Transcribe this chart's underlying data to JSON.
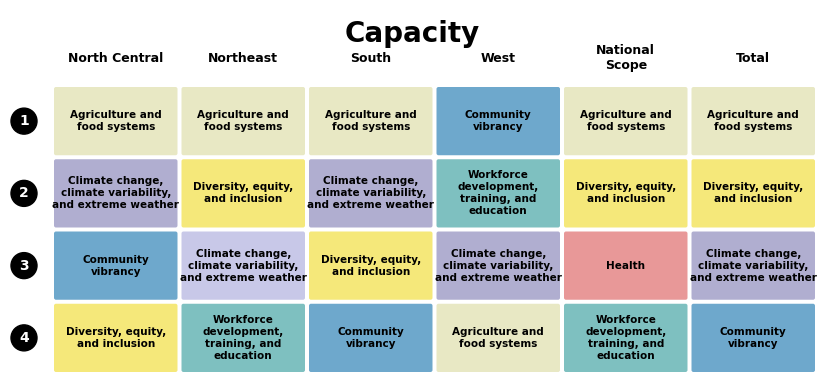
{
  "title": "Capacity",
  "columns": [
    "North Central",
    "Northeast",
    "South",
    "West",
    "National\nScope",
    "Total"
  ],
  "rows": [
    {
      "label": "1",
      "cells": [
        {
          "text": "Agriculture and\nfood systems",
          "color": "#e8e8c4"
        },
        {
          "text": "Agriculture and\nfood systems",
          "color": "#e8e8c4"
        },
        {
          "text": "Agriculture and\nfood systems",
          "color": "#e8e8c4"
        },
        {
          "text": "Community\nvibrancy",
          "color": "#6ea8cc"
        },
        {
          "text": "Agriculture and\nfood systems",
          "color": "#e8e8c4"
        },
        {
          "text": "Agriculture and\nfood systems",
          "color": "#e8e8c4"
        }
      ]
    },
    {
      "label": "2",
      "cells": [
        {
          "text": "Climate change,\nclimate variability,\nand extreme weather",
          "color": "#b0aed0"
        },
        {
          "text": "Diversity, equity,\nand inclusion",
          "color": "#f5e87a"
        },
        {
          "text": "Climate change,\nclimate variability,\nand extreme weather",
          "color": "#b0aed0"
        },
        {
          "text": "Workforce\ndevelopment,\ntraining, and\neducation",
          "color": "#7ec0c0"
        },
        {
          "text": "Diversity, equity,\nand inclusion",
          "color": "#f5e87a"
        },
        {
          "text": "Diversity, equity,\nand inclusion",
          "color": "#f5e87a"
        }
      ]
    },
    {
      "label": "3",
      "cells": [
        {
          "text": "Community\nvibrancy",
          "color": "#6ea8cc"
        },
        {
          "text": "Climate change,\nclimate variability,\nand extreme weather",
          "color": "#c8c8e8"
        },
        {
          "text": "Diversity, equity,\nand inclusion",
          "color": "#f5e87a"
        },
        {
          "text": "Climate change,\nclimate variability,\nand extreme weather",
          "color": "#b0aed0"
        },
        {
          "text": "Health",
          "color": "#e89898"
        },
        {
          "text": "Climate change,\nclimate variability,\nand extreme weather",
          "color": "#b0aed0"
        }
      ]
    },
    {
      "label": "4",
      "cells": [
        {
          "text": "Diversity, equity,\nand inclusion",
          "color": "#f5e87a"
        },
        {
          "text": "Workforce\ndevelopment,\ntraining, and\neducation",
          "color": "#7ec0c0"
        },
        {
          "text": "Community\nvibrancy",
          "color": "#6ea8cc"
        },
        {
          "text": "Agriculture and\nfood systems",
          "color": "#e8e8c4"
        },
        {
          "text": "Workforce\ndevelopment,\ntraining, and\neducation",
          "color": "#7ec0c0"
        },
        {
          "text": "Community\nvibrancy",
          "color": "#6ea8cc"
        }
      ]
    }
  ],
  "title_fontsize": 20,
  "col_header_fontsize": 9,
  "cell_fontsize": 7.5,
  "label_fontsize": 10,
  "bg_color": "#ffffff",
  "fig_width": 8.25,
  "fig_height": 3.86,
  "dpi": 100
}
